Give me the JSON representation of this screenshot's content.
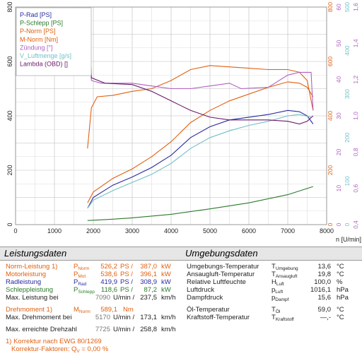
{
  "chart_data": {
    "type": "line",
    "xlabel": "n [U/min]",
    "xlim": [
      0,
      8000
    ],
    "x_ticks": [
      "0",
      "1000",
      "2000",
      "3000",
      "4000",
      "5000",
      "6000",
      "7000",
      "8000"
    ],
    "left_axis": {
      "ylim": [
        0,
        800
      ],
      "ticks": [
        "0",
        "200",
        "400",
        "600",
        "800"
      ]
    },
    "right_axes": [
      {
        "color": "#e06010",
        "ylim": [
          0,
          800
        ],
        "ticks": [
          "0",
          "200",
          "400",
          "600",
          "800"
        ]
      },
      {
        "color": "#b060c0",
        "ticks": [
          "0",
          "10",
          "20",
          "30",
          "40",
          "50",
          "60"
        ]
      },
      {
        "color": "#70c0c8",
        "ticks": [
          "0",
          "100",
          "200",
          "300",
          "400",
          "500"
        ]
      },
      {
        "color": "#b060c0",
        "ticks": [
          "0,4",
          "0,6",
          "0,8",
          "1,0",
          "1,2",
          "1,4",
          "1,6"
        ]
      }
    ],
    "grid": true,
    "legend_position": "top-left",
    "series": [
      {
        "name": "P-Rad [PS]",
        "color": "#2a2aa0",
        "x": [
          1850,
          2000,
          2500,
          3000,
          3500,
          4000,
          4500,
          5000,
          5500,
          6000,
          6500,
          7000,
          7300,
          7500,
          7650
        ],
        "y": [
          60,
          100,
          145,
          175,
          210,
          255,
          320,
          360,
          385,
          395,
          405,
          420,
          415,
          400,
          370
        ]
      },
      {
        "name": "P-Schlepp [PS]",
        "color": "#2a7a2a",
        "x": [
          1850,
          2500,
          3000,
          4000,
          5000,
          6000,
          7000,
          7650
        ],
        "y": [
          15,
          20,
          25,
          38,
          58,
          80,
          110,
          140
        ]
      },
      {
        "name": "P-Norm [PS]",
        "color": "#e06010",
        "x": [
          1850,
          2000,
          2500,
          3000,
          3500,
          4000,
          4500,
          5000,
          5500,
          6000,
          6500,
          7000,
          7300,
          7500,
          7650
        ],
        "y": [
          80,
          120,
          170,
          205,
          250,
          305,
          375,
          420,
          455,
          480,
          505,
          525,
          520,
          505,
          470
        ]
      },
      {
        "name": "M-Norm [Nm]",
        "color": "#e06010",
        "x": [
          1850,
          1950,
          2100,
          2500,
          3000,
          3500,
          4000,
          4500,
          5000,
          5500,
          6000,
          6500,
          7000,
          7300,
          7500,
          7650
        ],
        "y": [
          280,
          430,
          470,
          475,
          490,
          500,
          530,
          570,
          585,
          580,
          575,
          570,
          570,
          560,
          530,
          420
        ]
      },
      {
        "name": "Zündung [°]",
        "color": "#b060c0",
        "x": [
          1850,
          1900,
          1950,
          2200,
          3000,
          3500,
          4000,
          4500,
          5000,
          5500,
          5800,
          6500,
          7000,
          7300,
          7600,
          7650
        ],
        "y": [
          700,
          700,
          530,
          520,
          520,
          510,
          500,
          500,
          510,
          520,
          500,
          505,
          550,
          560,
          560,
          420
        ]
      },
      {
        "name": "V_Luftmenge [g/s]",
        "color": "#70c0c8",
        "x": [
          1850,
          2000,
          2500,
          3000,
          3500,
          4000,
          4500,
          5000,
          5500,
          6000,
          6500,
          7000,
          7300,
          7600
        ],
        "y": [
          60,
          90,
          125,
          155,
          185,
          225,
          280,
          320,
          345,
          365,
          380,
          400,
          405,
          395
        ]
      },
      {
        "name": "Lambda (OBD) []",
        "color": "#6a1a6a",
        "x": [
          1850,
          1900,
          1950,
          2300,
          3000,
          3500,
          4000,
          4500,
          5000,
          5500,
          6000,
          6500,
          7000,
          7300,
          7500,
          7650
        ],
        "y": [
          700,
          700,
          540,
          520,
          515,
          490,
          455,
          420,
          395,
          385,
          385,
          385,
          380,
          370,
          380,
          400
        ]
      }
    ]
  },
  "left": {
    "title": "Leistungsdaten",
    "rows": [
      {
        "label": "Norm-Leistung",
        "mark": "1)",
        "sym": "P",
        "sub": "Norm",
        "v1": "526,2",
        "u1": "PS",
        "v2": "387,0",
        "u2": "kW",
        "cls": "orange"
      },
      {
        "label": "Motorleistung",
        "mark": "",
        "sym": "P",
        "sub": "Mot",
        "v1": "538,6",
        "u1": "PS",
        "v2": "396,1",
        "u2": "kW",
        "cls": "orange"
      },
      {
        "label": "Radleistung",
        "mark": "",
        "sym": "P",
        "sub": "Rad",
        "v1": "419,9",
        "u1": "PS",
        "v2": "308,9",
        "u2": "kW",
        "cls": "blue"
      },
      {
        "label": "Schleppleistung",
        "mark": "",
        "sym": "P",
        "sub": "Schlepp",
        "v1": "118,6",
        "u1": "PS",
        "v2": "87,2",
        "u2": "kW",
        "cls": "green"
      }
    ],
    "maxpower": {
      "label": "Max. Leistung bei",
      "rpm": "7090",
      "unit": "U/min",
      "v": "237,5",
      "u": "km/h"
    },
    "torque": {
      "label": "Drehmoment",
      "mark": "1)",
      "sym": "M",
      "sub": "Norm",
      "v": "589,1",
      "u": "Nm"
    },
    "maxtorque": {
      "label": "Max. Drehmoment bei",
      "rpm": "5170",
      "unit": "U/min",
      "v": "173,1",
      "u": "km/h"
    },
    "maxrpm": {
      "label": "Max. erreichte Drehzahl",
      "rpm": "7725",
      "unit": "U/min",
      "v": "258,8",
      "u": "km/h"
    },
    "foot1": "1) Korrektur nach EWG 80/1269",
    "foot2": "Korrektur-Faktoren: Q",
    "foot2sub": "V",
    "foot2val": "=   0,00 %"
  },
  "right": {
    "title": "Umgebungsdaten",
    "rows": [
      {
        "label": "Umgebungs-Temperatur",
        "sym": "T",
        "sub": "Umgebung",
        "v": "13,6",
        "u": "°C"
      },
      {
        "label": "Ansaugluft-Temperatur",
        "sym": "T",
        "sub": "Ansaugluft",
        "v": "19,8",
        "u": "°C"
      },
      {
        "label": "Relative Luftfeuchte",
        "sym": "H",
        "sub": "Luft",
        "v": "100,0",
        "u": "%"
      },
      {
        "label": "Luftdruck",
        "sym": "p",
        "sub": "Luft",
        "v": "1016,1",
        "u": "hPa"
      },
      {
        "label": "Dampfdruck",
        "sym": "p",
        "sub": "Dampf",
        "v": "15,6",
        "u": "hPa"
      },
      {
        "label": "Öl-Temperatur",
        "sym": "T",
        "sub": "Öl",
        "v": "59,0",
        "u": "°C"
      },
      {
        "label": "Kraftstoff-Temperatur",
        "sym": "T",
        "sub": "Kraftstoff",
        "v": "—,-",
        "u": "°C"
      }
    ]
  }
}
